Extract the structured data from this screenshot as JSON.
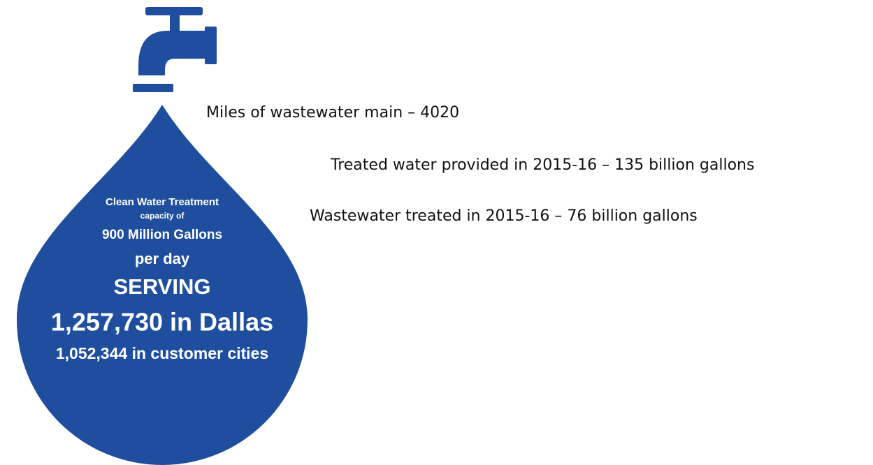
{
  "drop": {
    "lines": [
      "Clean Water Treatment",
      "capacity of",
      "900 Million Gallons",
      "per day",
      "SERVING",
      "1,257,730 in Dallas",
      "1,052,344 in customer cities"
    ]
  },
  "facts": [
    "Miles of wastewater main – 4020",
    "Treated water provided in 2015-16 – 135 billion gallons",
    "Wastewater treated in 2015-16 – 76 billion gallons"
  ]
}
